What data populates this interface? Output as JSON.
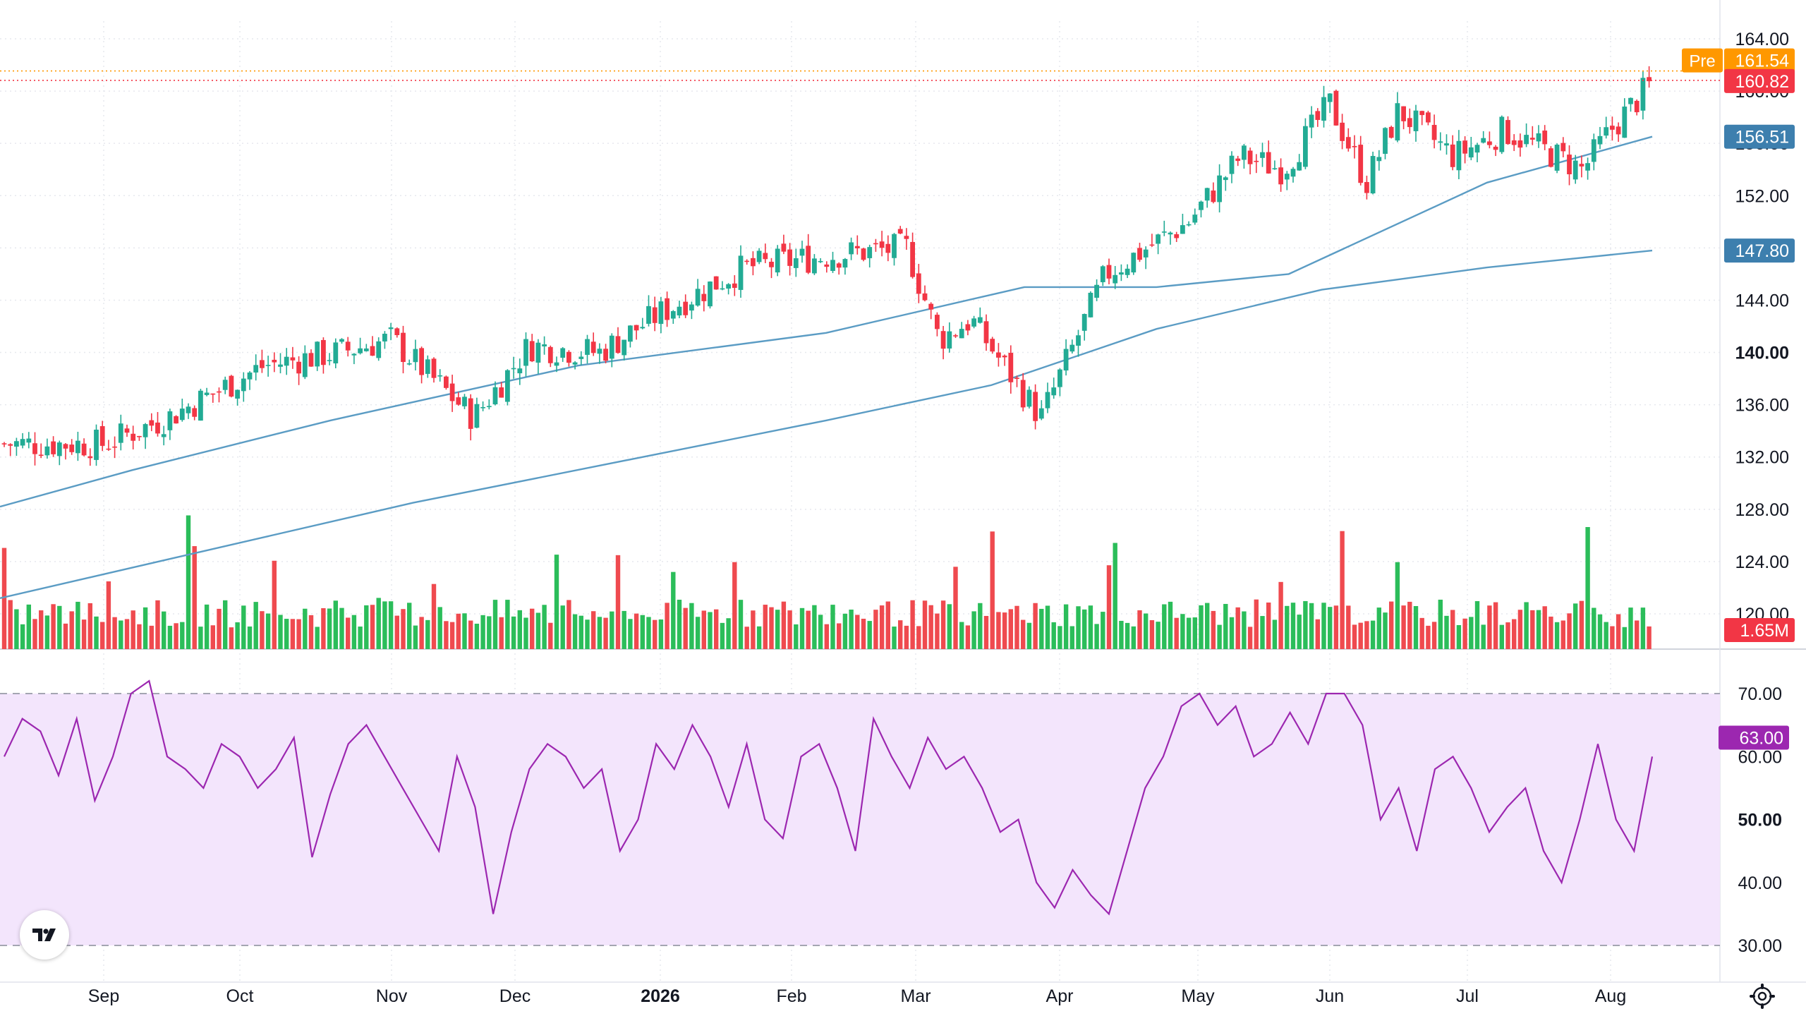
{
  "chart_data": {
    "type": "candlestick",
    "x_labels": [
      "Sep",
      "Oct",
      "Nov",
      "Dec",
      "2026",
      "Feb",
      "Mar",
      "Apr",
      "May",
      "Jun",
      "Jul",
      "Aug"
    ],
    "price_axis": {
      "ticks": [
        "164.00",
        "160.00",
        "156.00",
        "152.00",
        "148.00",
        "144.00",
        "140.00",
        "136.00",
        "132.00",
        "128.00",
        "124.00",
        "120.00"
      ],
      "range": [
        118,
        164
      ],
      "bold_tick": "140.00"
    },
    "rsi_axis": {
      "ticks": [
        "70.00",
        "60.00",
        "50.00",
        "40.00",
        "30.00"
      ],
      "range": [
        30,
        70
      ],
      "bold_tick": "50.00",
      "upper_band": 70,
      "lower_band": 30
    },
    "price_anchors": [
      {
        "month": "Sep",
        "day": 0,
        "close": 133
      },
      {
        "month": "Sep",
        "day": 14,
        "close": 135
      },
      {
        "month": "Oct",
        "day": 5,
        "close": 139
      },
      {
        "month": "Oct",
        "day": 20,
        "close": 140
      },
      {
        "month": "Nov",
        "day": 0,
        "close": 141
      },
      {
        "month": "Nov",
        "day": 20,
        "close": 135
      },
      {
        "month": "Dec",
        "day": 3,
        "close": 140.5
      },
      {
        "month": "Dec",
        "day": 18,
        "close": 140
      },
      {
        "month": "2026",
        "day": 0,
        "close": 143
      },
      {
        "month": "2026",
        "day": 20,
        "close": 146.5
      },
      {
        "month": "Feb",
        "day": 10,
        "close": 147.5
      },
      {
        "month": "Feb",
        "day": 26,
        "close": 148
      },
      {
        "month": "Mar",
        "day": 5,
        "close": 141
      },
      {
        "month": "Mar",
        "day": 12,
        "close": 142.5
      },
      {
        "month": "Mar",
        "day": 27,
        "close": 135
      },
      {
        "month": "Apr",
        "day": 10,
        "close": 146
      },
      {
        "month": "Apr",
        "day": 28,
        "close": 150
      },
      {
        "month": "May",
        "day": 10,
        "close": 155
      },
      {
        "month": "May",
        "day": 20,
        "close": 154
      },
      {
        "month": "Jun",
        "day": 0,
        "close": 159
      },
      {
        "month": "Jun",
        "day": 8,
        "close": 153
      },
      {
        "month": "Jun",
        "day": 15,
        "close": 158.5
      },
      {
        "month": "Jun",
        "day": 27,
        "close": 155
      },
      {
        "month": "Jul",
        "day": 8,
        "close": 157
      },
      {
        "month": "Jul",
        "day": 25,
        "close": 154
      },
      {
        "month": "Aug",
        "day": 0,
        "close": 157
      },
      {
        "month": "Aug",
        "day": 10,
        "close": 161
      }
    ],
    "moving_averages": [
      {
        "label": "156.51",
        "last": 156.51,
        "color": "#5b9cc4",
        "points": [
          [
            0,
            128.2
          ],
          [
            0.08,
            131
          ],
          [
            0.2,
            134.8
          ],
          [
            0.35,
            139
          ],
          [
            0.5,
            141.5
          ],
          [
            0.62,
            145
          ],
          [
            0.7,
            145
          ],
          [
            0.78,
            146
          ],
          [
            0.9,
            153
          ],
          [
            1,
            156.51
          ]
        ]
      },
      {
        "label": "147.80",
        "last": 147.8,
        "color": "#5b9cc4",
        "points": [
          [
            0,
            121.2
          ],
          [
            0.25,
            128.5
          ],
          [
            0.5,
            134.8
          ],
          [
            0.6,
            137.5
          ],
          [
            0.7,
            141.8
          ],
          [
            0.8,
            144.8
          ],
          [
            0.9,
            146.5
          ],
          [
            1,
            147.8
          ]
        ]
      }
    ],
    "rsi_series": [
      60,
      66,
      64,
      57,
      66,
      53,
      60,
      70,
      72,
      60,
      58,
      55,
      62,
      60,
      55,
      58,
      63,
      44,
      54,
      62,
      65,
      60,
      55,
      50,
      45,
      60,
      52,
      35,
      48,
      58,
      62,
      60,
      55,
      58,
      45,
      50,
      62,
      58,
      65,
      60,
      52,
      62,
      50,
      47,
      60,
      62,
      55,
      45,
      66,
      60,
      55,
      63,
      58,
      60,
      55,
      48,
      50,
      40,
      36,
      42,
      38,
      35,
      45,
      55,
      60,
      68,
      70,
      65,
      68,
      60,
      62,
      67,
      62,
      70,
      70,
      65,
      50,
      55,
      45,
      58,
      60,
      55,
      48,
      52,
      55,
      45,
      40,
      50,
      62,
      50,
      45,
      60
    ],
    "volume_max": 2.5,
    "price_labels": {
      "pre_tag": "Pre",
      "pre_value": "161.54",
      "last_close": "160.82",
      "volume": "1.65M",
      "rsi": "63.00"
    },
    "colors": {
      "up": "#22ab94",
      "down": "#f23645",
      "ma": "#5b9cc4",
      "rsi": "#9c27b0",
      "rsi_band": "#f3e5fc",
      "pre": "#ff9800",
      "last": "#f23645",
      "ma_tag": "#3d7fae"
    }
  }
}
